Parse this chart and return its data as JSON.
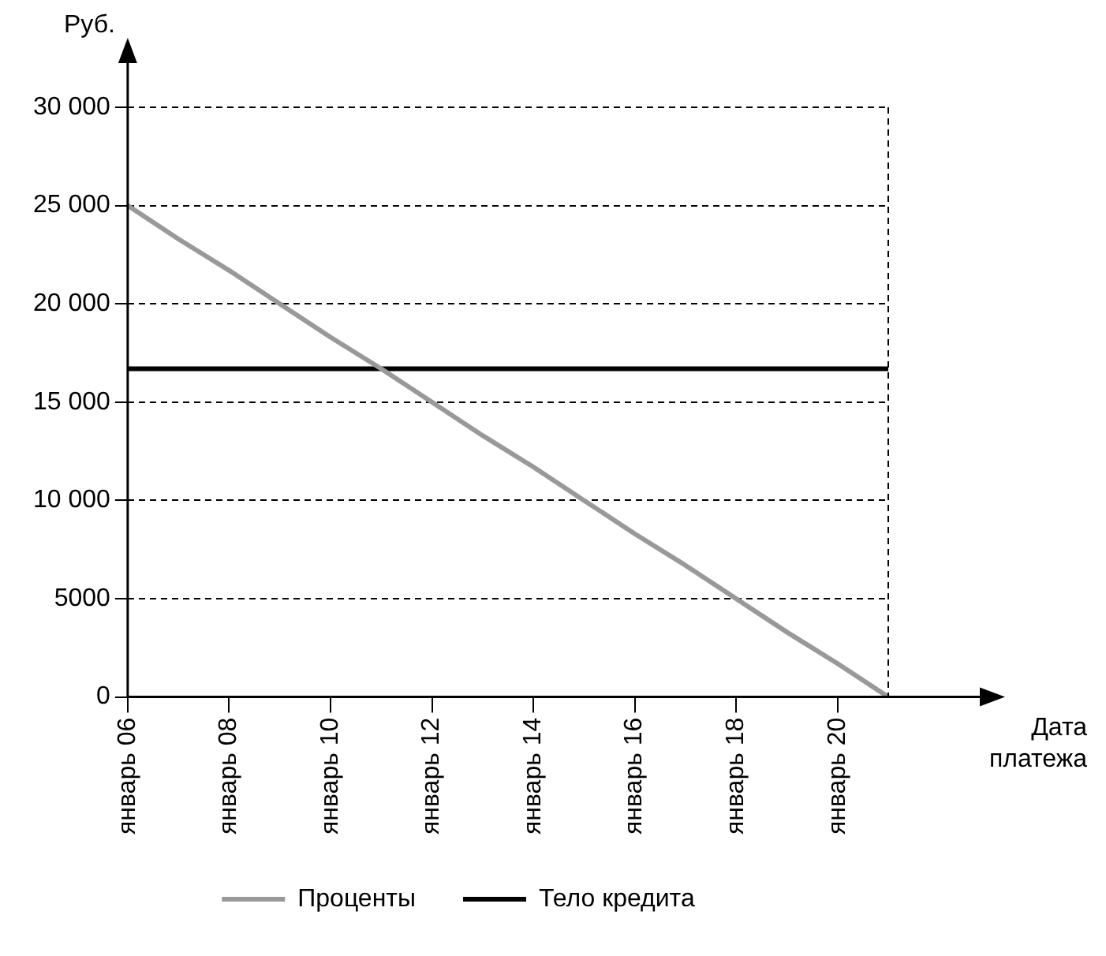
{
  "chart_data": {
    "type": "line",
    "ylabel": "Руб.",
    "xlabel": "Дата платежа",
    "categories": [
      "январь 06",
      null,
      "январь 08",
      null,
      "январь 10",
      null,
      "январь 12",
      null,
      "январь 14",
      null,
      "январь 16",
      null,
      "январь 18",
      null,
      "январь 20",
      null
    ],
    "series": [
      {
        "name": "Проценты",
        "color": "#999999",
        "values": [
          25000,
          23300,
          21700,
          20000,
          18300,
          16700,
          15000,
          13300,
          11700,
          10000,
          8300,
          6700,
          5000,
          3300,
          1700,
          0
        ]
      },
      {
        "name": "Тело кредита",
        "color": "#000000",
        "values": [
          16700,
          16700,
          16700,
          16700,
          16700,
          16700,
          16700,
          16700,
          16700,
          16700,
          16700,
          16700,
          16700,
          16700,
          16700,
          16700
        ]
      }
    ],
    "ylim": [
      0,
      30000
    ],
    "yticks": [
      0,
      5000,
      {
        "value": 10000,
        "label": "10 000"
      },
      {
        "value": 15000,
        "label": "15 000"
      },
      {
        "value": 20000,
        "label": "20 000"
      },
      {
        "value": 25000,
        "label": "25 000"
      },
      {
        "value": 30000,
        "label": "30 000"
      }
    ],
    "grid": "y",
    "legend": "bottom",
    "marker": "none",
    "line_style": "solid"
  }
}
